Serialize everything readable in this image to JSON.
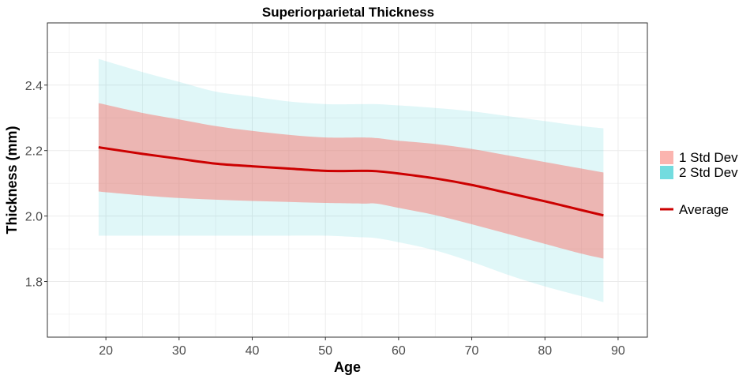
{
  "chart_data": {
    "type": "area",
    "title": "Superiorparietal Thickness",
    "xlabel": "Age",
    "ylabel": "Thickness (mm)",
    "xlim": [
      12,
      94
    ],
    "ylim": [
      1.63,
      2.59
    ],
    "xticks": [
      20,
      30,
      40,
      50,
      60,
      70,
      80,
      90
    ],
    "yticks": [
      1.8,
      2.0,
      2.2,
      2.4
    ],
    "grid": true,
    "legend_position": "right",
    "colors": {
      "band_1sd": "#f8766d",
      "band_2sd": "#00bfc4",
      "average": "#cc0000",
      "panel_border": "#333333",
      "grid": "#ebebeb"
    },
    "x": [
      19,
      25,
      30,
      35,
      40,
      45,
      50,
      55,
      57,
      60,
      65,
      70,
      75,
      80,
      85,
      88
    ],
    "series": [
      {
        "name": "Average",
        "values": [
          2.21,
          2.19,
          2.175,
          2.16,
          2.152,
          2.145,
          2.138,
          2.138,
          2.137,
          2.13,
          2.115,
          2.095,
          2.07,
          2.045,
          2.018,
          2.002
        ]
      },
      {
        "name": "1 Std Dev",
        "lower": [
          2.075,
          2.063,
          2.055,
          2.05,
          2.046,
          2.043,
          2.04,
          2.038,
          2.038,
          2.025,
          2.003,
          1.975,
          1.945,
          1.915,
          1.885,
          1.87
        ],
        "upper": [
          2.345,
          2.315,
          2.295,
          2.275,
          2.26,
          2.248,
          2.24,
          2.24,
          2.238,
          2.23,
          2.22,
          2.205,
          2.185,
          2.165,
          2.145,
          2.133
        ]
      },
      {
        "name": "2 Std Dev",
        "lower": [
          1.94,
          1.94,
          1.94,
          1.94,
          1.94,
          1.94,
          1.94,
          1.935,
          1.932,
          1.92,
          1.895,
          1.86,
          1.82,
          1.785,
          1.755,
          1.737
        ],
        "upper": [
          2.48,
          2.44,
          2.41,
          2.38,
          2.365,
          2.35,
          2.342,
          2.342,
          2.342,
          2.338,
          2.33,
          2.32,
          2.305,
          2.29,
          2.275,
          2.268
        ]
      }
    ],
    "legend": {
      "fill_items": [
        "1 Std Dev",
        "2 Std Dev"
      ],
      "line_items": [
        "Average"
      ]
    }
  }
}
